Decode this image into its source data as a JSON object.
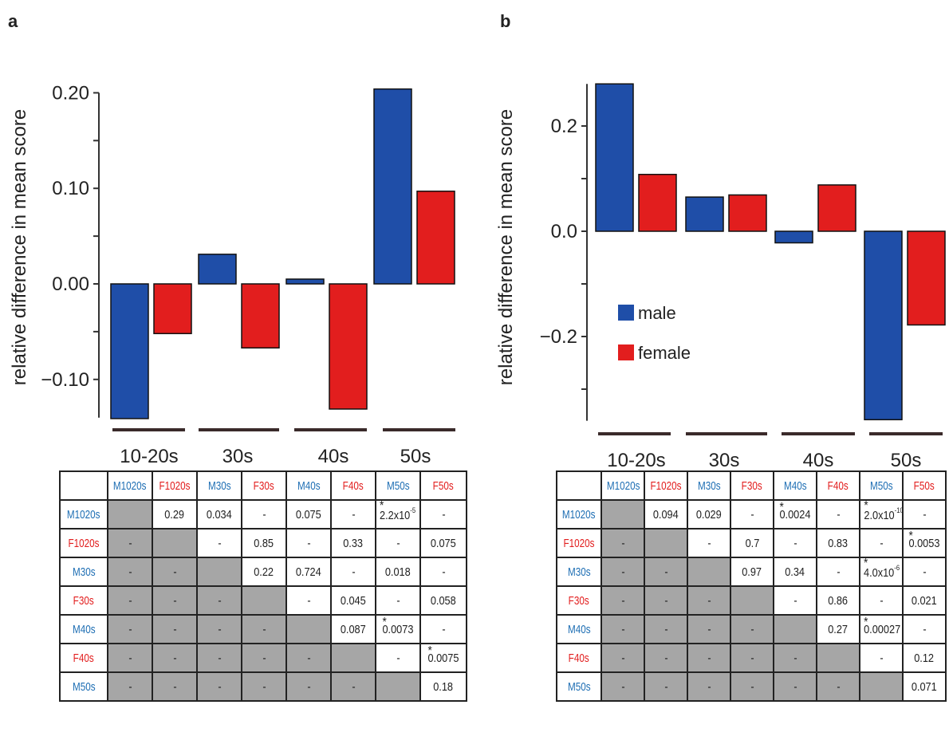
{
  "panels": [
    {
      "label": "a",
      "chart_data": {
        "type": "bar",
        "ylabel": "relative difference in mean score",
        "ylim": [
          -0.14,
          0.2
        ],
        "yticks": [
          "0.20",
          "0.10",
          "0.00",
          "−0.10"
        ],
        "yticks_values": [
          0.2,
          0.1,
          0.0,
          -0.1
        ],
        "categories": [
          "10-20s",
          "30s",
          "40s",
          "50s"
        ],
        "series": [
          {
            "name": "male",
            "color": "#1f4ea8",
            "values": [
              -0.141,
              0.031,
              0.005,
              0.204
            ]
          },
          {
            "name": "female",
            "color": "#e21e1e",
            "values": [
              -0.052,
              -0.067,
              -0.131,
              0.097
            ]
          }
        ]
      },
      "table": {
        "columns": [
          "M1020s",
          "F1020s",
          "M30s",
          "F30s",
          "M40s",
          "F40s",
          "M50s",
          "F50s"
        ],
        "rows": [
          {
            "label": "M1020s",
            "cells": [
              "",
              "0.29",
              "0.034",
              "-",
              "0.075",
              "-",
              "*2.2x10^-5",
              "-"
            ]
          },
          {
            "label": "F1020s",
            "cells": [
              "-",
              "",
              "-",
              "0.85",
              "-",
              "0.33",
              "-",
              "0.075"
            ]
          },
          {
            "label": "M30s",
            "cells": [
              "-",
              "-",
              "",
              "0.22",
              "0.724",
              "-",
              "0.018",
              "-"
            ]
          },
          {
            "label": "F30s",
            "cells": [
              "-",
              "-",
              "-",
              "",
              "-",
              "0.045",
              "-",
              "0.058"
            ]
          },
          {
            "label": "M40s",
            "cells": [
              "-",
              "-",
              "-",
              "-",
              "",
              "0.087",
              "*0.0073",
              "-"
            ]
          },
          {
            "label": "F40s",
            "cells": [
              "-",
              "-",
              "-",
              "-",
              "-",
              "",
              "-",
              "*0.0075"
            ]
          },
          {
            "label": "M50s",
            "cells": [
              "-",
              "-",
              "-",
              "-",
              "-",
              "-",
              "",
              "0.18"
            ]
          }
        ]
      }
    },
    {
      "label": "b",
      "chart_data": {
        "type": "bar",
        "ylabel": "relative difference in mean score",
        "ylim": [
          -0.36,
          0.28
        ],
        "yticks": [
          "0.2",
          "0.0",
          "−0.2"
        ],
        "yticks_values": [
          0.2,
          0.0,
          -0.2
        ],
        "categories": [
          "10-20s",
          "30s",
          "40s",
          "50s"
        ],
        "legend": {
          "position": "center-left",
          "entries": [
            "male",
            "female"
          ]
        },
        "series": [
          {
            "name": "male",
            "color": "#1f4ea8",
            "values": [
              0.28,
              0.065,
              -0.022,
              -0.358
            ]
          },
          {
            "name": "female",
            "color": "#e21e1e",
            "values": [
              0.108,
              0.069,
              0.088,
              -0.178
            ]
          }
        ]
      },
      "table": {
        "columns": [
          "M1020s",
          "F1020s",
          "M30s",
          "F30s",
          "M40s",
          "F40s",
          "M50s",
          "F50s"
        ],
        "rows": [
          {
            "label": "M1020s",
            "cells": [
              "",
              "0.094",
              "0.029",
              "-",
              "*0.0024",
              "-",
              "*2.0x10^-10",
              "-"
            ]
          },
          {
            "label": "F1020s",
            "cells": [
              "-",
              "",
              "-",
              "0.7",
              "-",
              "0.83",
              "-",
              "*0.0053"
            ]
          },
          {
            "label": "M30s",
            "cells": [
              "-",
              "-",
              "",
              "0.97",
              "0.34",
              "-",
              "*4.0x10^-6",
              "-"
            ]
          },
          {
            "label": "F30s",
            "cells": [
              "-",
              "-",
              "-",
              "",
              "-",
              "0.86",
              "-",
              "0.021"
            ]
          },
          {
            "label": "M40s",
            "cells": [
              "-",
              "-",
              "-",
              "-",
              "",
              "0.27",
              "*0.00027",
              "-"
            ]
          },
          {
            "label": "F40s",
            "cells": [
              "-",
              "-",
              "-",
              "-",
              "-",
              "",
              "-",
              "0.12"
            ]
          },
          {
            "label": "M50s",
            "cells": [
              "-",
              "-",
              "-",
              "-",
              "-",
              "-",
              "",
              "0.071"
            ]
          }
        ]
      }
    }
  ]
}
